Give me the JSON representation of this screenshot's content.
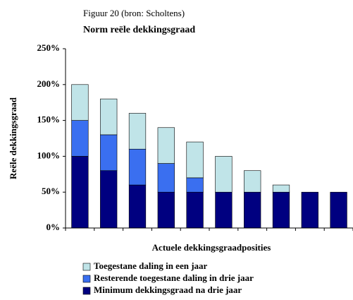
{
  "chart_data": {
    "type": "stacked-bar",
    "subtitle": "Figuur 20 (bron: Scholtens)",
    "title": "Norm reële dekkingsgraad",
    "y_label": "Reële dekkingsgraad",
    "x_label": "Actuele dekkingsgraadposities",
    "categories": [
      null,
      null,
      null,
      null,
      null,
      null,
      null,
      null,
      null,
      null
    ],
    "series": [
      {
        "name": "Minimum dekkingsgraad na drie jaar",
        "color": "#000080",
        "values": [
          100,
          80,
          60,
          50,
          50,
          50,
          50,
          50,
          50,
          50
        ]
      },
      {
        "name": "Resterende toegestane daling in drie jaar",
        "color": "#3a6ff0",
        "values": [
          50,
          50,
          50,
          40,
          20,
          0,
          0,
          0,
          0,
          0
        ]
      },
      {
        "name": "Toegestane daling in een jaar",
        "color": "#c0e4e8",
        "values": [
          50,
          50,
          50,
          50,
          50,
          50,
          30,
          10,
          0,
          0
        ]
      }
    ],
    "ylim": [
      0,
      250
    ],
    "yticks": [
      {
        "value": 0,
        "label": "0%"
      },
      {
        "value": 50,
        "label": "50%"
      },
      {
        "value": 100,
        "label": "100%"
      },
      {
        "value": 150,
        "label": "150%"
      },
      {
        "value": 200,
        "label": "200%"
      },
      {
        "value": 250,
        "label": "250%"
      }
    ],
    "grid": false
  }
}
